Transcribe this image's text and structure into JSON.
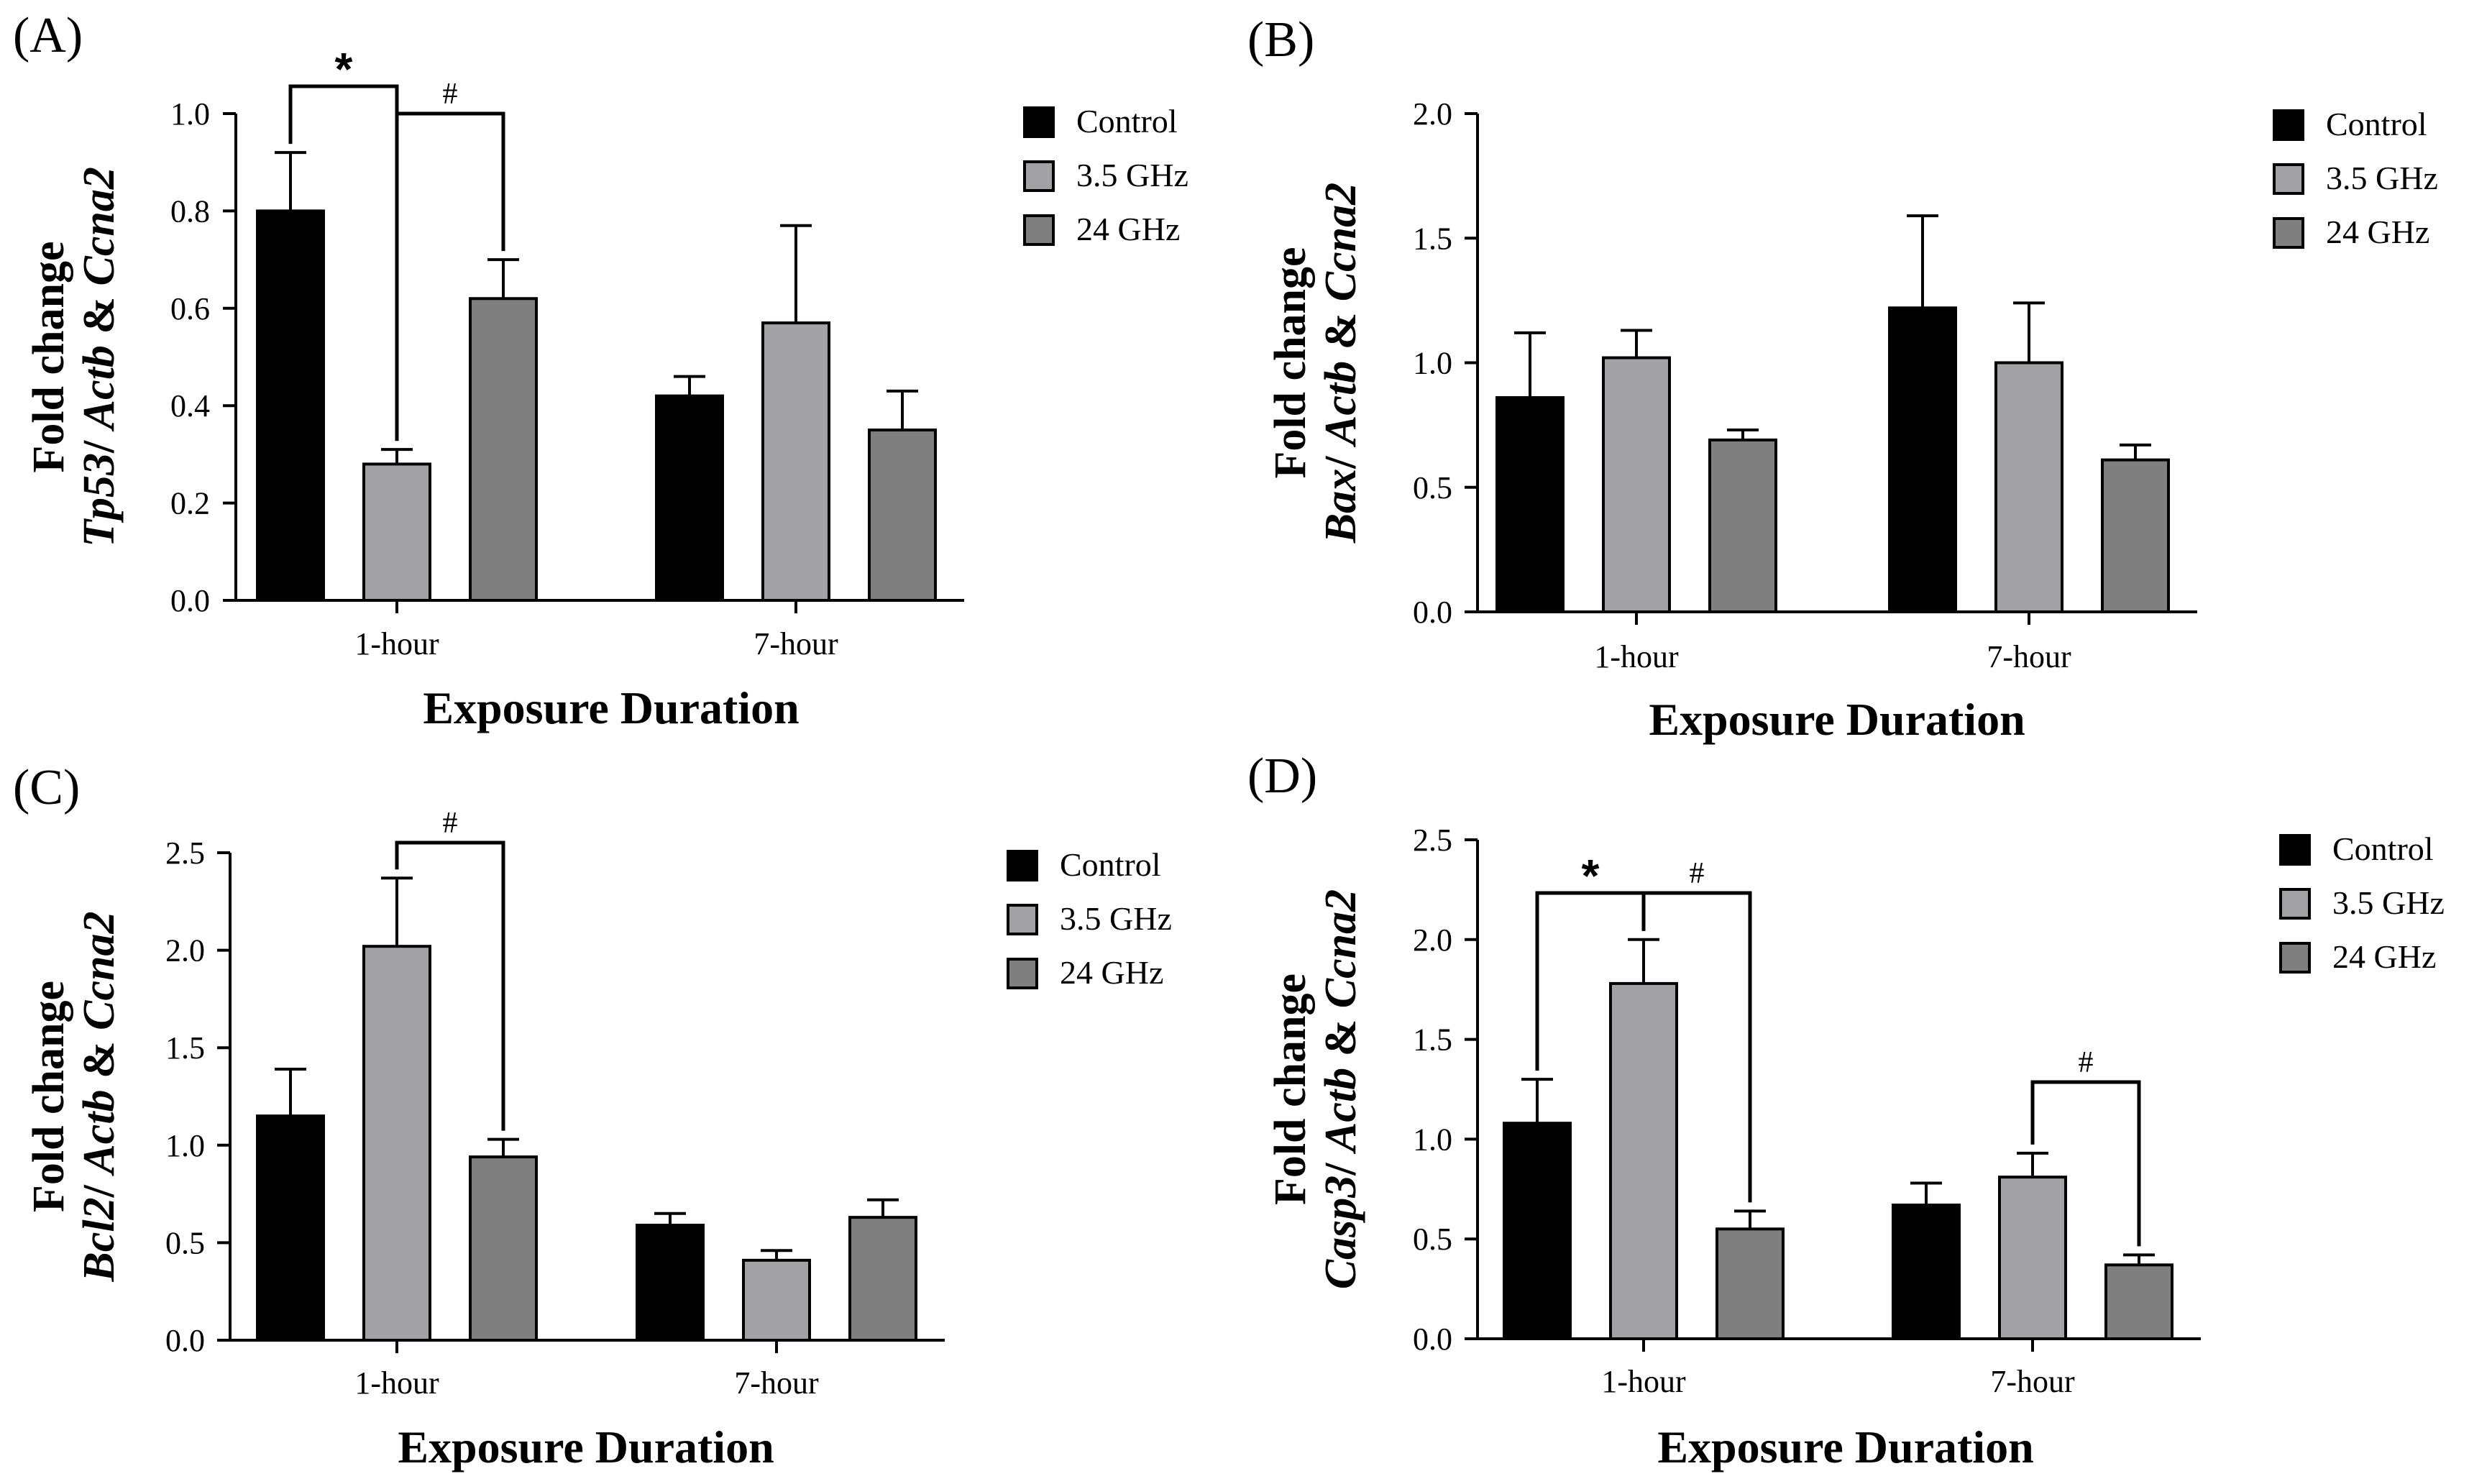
{
  "colors": {
    "control": "#000000",
    "ghz35": "#a2a2a6",
    "ghz24": "#7f7f7f"
  },
  "chart_data": [
    {
      "type": "bar",
      "panel": "(A)",
      "categories": [
        "1-hour",
        "7-hour"
      ],
      "series": [
        {
          "name": "Control",
          "values": [
            0.8,
            0.42
          ],
          "errors": [
            0.12,
            0.04
          ]
        },
        {
          "name": "3.5 GHz",
          "values": [
            0.28,
            0.57
          ],
          "errors": [
            0.03,
            0.2
          ]
        },
        {
          "name": "24 GHz",
          "values": [
            0.62,
            0.35
          ],
          "errors": [
            0.08,
            0.08
          ]
        }
      ],
      "ylabel_line1": "Fold change",
      "ylabel_gene": "Tp53",
      "ylabel_rest": "/ Actb & Ccna2",
      "xlabel": "Exposure Duration",
      "ylim": [
        0,
        1.0
      ],
      "yticks": [
        "0.0",
        "0.2",
        "0.4",
        "0.6",
        "0.8",
        "1.0"
      ],
      "significance": [
        {
          "symbol": "*",
          "cat": 0,
          "from": 0,
          "to": 1
        },
        {
          "symbol": "#",
          "cat": 0,
          "from": 1,
          "to": 2
        }
      ],
      "legend": [
        "Control",
        "3.5 GHz",
        "24 GHz"
      ]
    },
    {
      "type": "bar",
      "panel": "(B)",
      "categories": [
        "1-hour",
        "7-hour"
      ],
      "series": [
        {
          "name": "Control",
          "values": [
            0.86,
            1.22
          ],
          "errors": [
            0.26,
            0.37
          ]
        },
        {
          "name": "3.5 GHz",
          "values": [
            1.02,
            1.0
          ],
          "errors": [
            0.11,
            0.24
          ]
        },
        {
          "name": "24 GHz",
          "values": [
            0.69,
            0.61
          ],
          "errors": [
            0.04,
            0.06
          ]
        }
      ],
      "ylabel_line1": "Fold change",
      "ylabel_gene": "Bax",
      "ylabel_rest": "/ Actb & Ccna2",
      "xlabel": "Exposure Duration",
      "ylim": [
        0,
        2.0
      ],
      "yticks": [
        "0.0",
        "0.5",
        "1.0",
        "1.5",
        "2.0"
      ],
      "significance": [],
      "legend": [
        "Control",
        "3.5 GHz",
        "24 GHz"
      ]
    },
    {
      "type": "bar",
      "panel": "(C)",
      "categories": [
        "1-hour",
        "7-hour"
      ],
      "series": [
        {
          "name": "Control",
          "values": [
            1.15,
            0.59
          ],
          "errors": [
            0.24,
            0.06
          ]
        },
        {
          "name": "3.5 GHz",
          "values": [
            2.02,
            0.41
          ],
          "errors": [
            0.35,
            0.05
          ]
        },
        {
          "name": "24 GHz",
          "values": [
            0.94,
            0.63
          ],
          "errors": [
            0.09,
            0.09
          ]
        }
      ],
      "ylabel_line1": "Fold change",
      "ylabel_gene": "Bcl2",
      "ylabel_rest": "/ Actb & Ccna2",
      "xlabel": "Exposure Duration",
      "ylim": [
        0,
        2.5
      ],
      "yticks": [
        "0.0",
        "0.5",
        "1.0",
        "1.5",
        "2.0",
        "2.5"
      ],
      "significance": [
        {
          "symbol": "#",
          "cat": 0,
          "from": 1,
          "to": 2
        }
      ],
      "legend": [
        "Control",
        "3.5 GHz",
        "24 GHz"
      ]
    },
    {
      "type": "bar",
      "panel": "(D)",
      "categories": [
        "1-hour",
        "7-hour"
      ],
      "series": [
        {
          "name": "Control",
          "values": [
            1.08,
            0.67
          ],
          "errors": [
            0.22,
            0.11
          ]
        },
        {
          "name": "3.5 GHz",
          "values": [
            1.78,
            0.81
          ],
          "errors": [
            0.22,
            0.12
          ]
        },
        {
          "name": "24 GHz",
          "values": [
            0.55,
            0.37
          ],
          "errors": [
            0.09,
            0.05
          ]
        }
      ],
      "ylabel_line1": "Fold change",
      "ylabel_gene": "Casp3",
      "ylabel_rest": "/ Actb & Ccna2",
      "xlabel": "Exposure Duration",
      "ylim": [
        0,
        2.5
      ],
      "yticks": [
        "0.0",
        "0.5",
        "1.0",
        "1.5",
        "2.0",
        "2.5"
      ],
      "significance": [
        {
          "symbol": "*",
          "cat": 0,
          "from": 0,
          "to": 1
        },
        {
          "symbol": "#",
          "cat": 0,
          "from": 1,
          "to": 2
        },
        {
          "symbol": "#",
          "cat": 1,
          "from": 1,
          "to": 2
        }
      ],
      "legend": [
        "Control",
        "3.5 GHz",
        "24 GHz"
      ]
    }
  ]
}
